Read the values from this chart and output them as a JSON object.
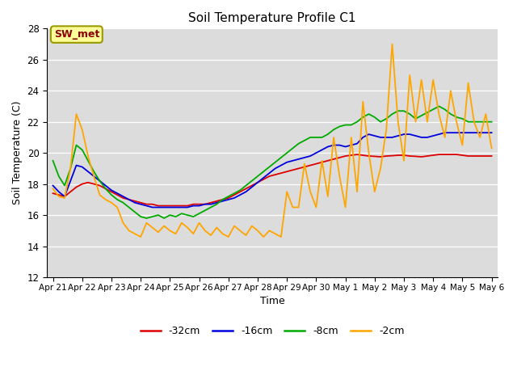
{
  "title": "Soil Temperature Profile C1",
  "xlabel": "Time",
  "ylabel": "Soil Temperature (C)",
  "ylim": [
    12,
    28
  ],
  "yticks": [
    12,
    14,
    16,
    18,
    20,
    22,
    24,
    26,
    28
  ],
  "annotation_text": "SW_met",
  "annotation_color": "#8B0000",
  "annotation_bg": "#FFFF99",
  "annotation_border": "#999900",
  "plot_bg_color": "#DCDCDC",
  "fig_bg_color": "#FFFFFF",
  "line_colors": {
    "-32cm": "#DD0000",
    "-16cm": "#0000DD",
    "-8cm": "#00AA00",
    "-2cm": "#FFA500"
  },
  "x_labels": [
    "Apr 21",
    "Apr 22",
    "Apr 23",
    "Apr 24",
    "Apr 25",
    "Apr 26",
    "Apr 27",
    "Apr 28",
    "Apr 29",
    "Apr 30",
    "May 1",
    "May 2",
    "May 3",
    "May 4",
    "May 5",
    "May 6"
  ],
  "series": {
    "-32cm": [
      17.4,
      17.3,
      17.2,
      17.5,
      17.8,
      18.0,
      18.1,
      18.0,
      17.9,
      17.7,
      17.5,
      17.3,
      17.1,
      17.0,
      16.9,
      16.8,
      16.7,
      16.7,
      16.6,
      16.6,
      16.6,
      16.6,
      16.6,
      16.6,
      16.7,
      16.7,
      16.7,
      16.8,
      16.9,
      17.0,
      17.1,
      17.3,
      17.5,
      17.7,
      17.9,
      18.1,
      18.3,
      18.5,
      18.6,
      18.7,
      18.8,
      18.9,
      19.0,
      19.1,
      19.2,
      19.3,
      19.4,
      19.5,
      19.6,
      19.7,
      19.8,
      19.85,
      19.9,
      19.85,
      19.8,
      19.78,
      19.75,
      19.8,
      19.82,
      19.85,
      19.85,
      19.8,
      19.78,
      19.75,
      19.8,
      19.85,
      19.9,
      19.9,
      19.9,
      19.9,
      19.85,
      19.8,
      19.8,
      19.8,
      19.8,
      19.8
    ],
    "-16cm": [
      17.9,
      17.5,
      17.2,
      18.2,
      19.2,
      19.1,
      18.8,
      18.5,
      18.2,
      17.9,
      17.6,
      17.4,
      17.2,
      17.0,
      16.8,
      16.7,
      16.6,
      16.5,
      16.5,
      16.5,
      16.5,
      16.5,
      16.5,
      16.5,
      16.6,
      16.6,
      16.7,
      16.7,
      16.8,
      16.9,
      17.0,
      17.1,
      17.3,
      17.5,
      17.8,
      18.1,
      18.4,
      18.7,
      19.0,
      19.2,
      19.4,
      19.5,
      19.6,
      19.7,
      19.8,
      20.0,
      20.2,
      20.4,
      20.5,
      20.5,
      20.4,
      20.5,
      20.6,
      21.0,
      21.2,
      21.1,
      21.0,
      21.0,
      21.0,
      21.1,
      21.2,
      21.2,
      21.1,
      21.0,
      21.0,
      21.1,
      21.2,
      21.3,
      21.3,
      21.3,
      21.3,
      21.3,
      21.3,
      21.3,
      21.3,
      21.3
    ],
    "-8cm": [
      19.5,
      18.5,
      17.9,
      19.0,
      20.5,
      20.2,
      19.5,
      18.8,
      18.2,
      17.7,
      17.3,
      17.0,
      16.8,
      16.5,
      16.2,
      15.9,
      15.8,
      15.9,
      16.0,
      15.8,
      16.0,
      15.9,
      16.1,
      16.0,
      15.9,
      16.1,
      16.3,
      16.5,
      16.7,
      17.0,
      17.2,
      17.4,
      17.6,
      17.9,
      18.2,
      18.5,
      18.8,
      19.1,
      19.4,
      19.7,
      20.0,
      20.3,
      20.6,
      20.8,
      21.0,
      21.0,
      21.0,
      21.2,
      21.5,
      21.7,
      21.8,
      21.8,
      22.0,
      22.3,
      22.5,
      22.3,
      22.0,
      22.2,
      22.5,
      22.7,
      22.7,
      22.5,
      22.2,
      22.4,
      22.6,
      22.8,
      23.0,
      22.8,
      22.5,
      22.3,
      22.2,
      22.0,
      22.0,
      22.0,
      22.0,
      22.0
    ],
    "-2cm": [
      17.7,
      17.2,
      17.1,
      19.0,
      22.5,
      21.5,
      19.8,
      18.5,
      17.3,
      17.0,
      16.8,
      16.5,
      15.5,
      15.0,
      14.8,
      14.6,
      15.5,
      15.2,
      14.9,
      15.3,
      15.0,
      14.8,
      15.5,
      15.2,
      14.8,
      15.5,
      15.0,
      14.7,
      15.2,
      14.8,
      14.6,
      15.3,
      15.0,
      14.7,
      15.3,
      15.0,
      14.6,
      15.0,
      14.8,
      14.6,
      17.5,
      16.5,
      16.5,
      19.3,
      17.5,
      16.5,
      19.5,
      17.2,
      21.0,
      18.5,
      16.5,
      21.0,
      17.5,
      23.3,
      20.0,
      17.5,
      19.0,
      21.5,
      27.0,
      22.0,
      19.5,
      25.0,
      22.0,
      24.7,
      22.0,
      24.7,
      22.5,
      21.0,
      24.0,
      22.0,
      20.5,
      24.5,
      22.0,
      21.0,
      22.5,
      20.3
    ]
  }
}
